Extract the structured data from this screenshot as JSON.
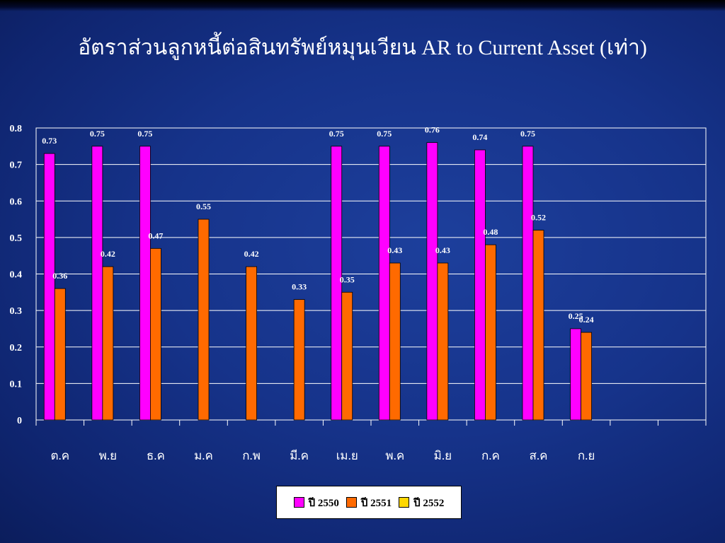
{
  "slide": {
    "title": "อัตราส่วนลูกหนี้ต่อสินทรัพย์หมุนเวียน AR to Current Asset (เท่า)"
  },
  "chart_data": {
    "type": "bar",
    "title": "",
    "xlabel": "",
    "ylabel": "",
    "ylim": [
      0,
      0.8
    ],
    "ytick_labels": [
      "0",
      "0.1",
      "0.2",
      "0.3",
      "0.4",
      "0.5",
      "0.6",
      "0.7",
      "0.8"
    ],
    "ytick_values": [
      0,
      0.1,
      0.2,
      0.3,
      0.4,
      0.5,
      0.6,
      0.7,
      0.8
    ],
    "categories": [
      "ต.ค",
      "พ.ย",
      "ธ.ค",
      "ม.ค",
      "ก.พ",
      "มี.ค",
      "เม.ย",
      "พ.ค",
      "มิ.ย",
      "ก.ค",
      "ส.ค",
      "ก.ย"
    ],
    "series": [
      {
        "name": "ปี 2550",
        "color": "#ff00ff",
        "values": [
          0.73,
          0.75,
          0.75,
          null,
          null,
          null,
          0.75,
          0.75,
          0.76,
          0.74,
          0.75,
          0.25
        ]
      },
      {
        "name": "ปี 2551",
        "color": "#ff6a00",
        "values": [
          0.36,
          0.42,
          0.47,
          0.55,
          0.42,
          0.33,
          0.35,
          0.43,
          0.43,
          0.48,
          0.52,
          0.24
        ]
      },
      {
        "name": "ปี 2552",
        "color": "#ffd700",
        "values": [
          null,
          null,
          null,
          null,
          null,
          null,
          null,
          null,
          null,
          null,
          null,
          null
        ]
      }
    ],
    "grid": true,
    "legend_position": "bottom-center"
  }
}
